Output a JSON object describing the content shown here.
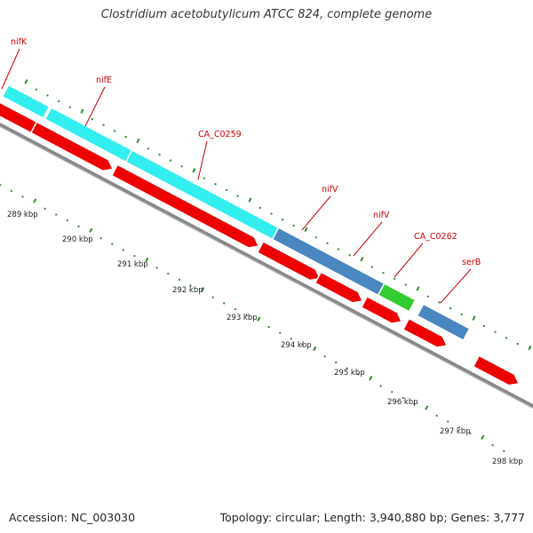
{
  "title": "Clostridium acetobutylicum ATCC 824, complete genome",
  "footer": {
    "accession": "Accession: NC_003030",
    "summary": "Topology: circular; Length: 3,940,880 bp; Genes: 3,777"
  },
  "colors": {
    "backbone": "#888888",
    "cds": "#ee0000",
    "cyan_gene": "#33eeee",
    "steelblue_gene": "#4a86c0",
    "green_gene": "#33cc33",
    "orange_gene": "#ff9900",
    "ticks": "#2e8b2e",
    "labels": "#cc0000"
  },
  "gene_labels": [
    "nifK",
    "nifE",
    "CA_C0259",
    "nifV",
    "nifV",
    "CA_C0262",
    "serB"
  ],
  "kbp_ticks": [
    "289 kbp",
    "290 kbp",
    "291 kbp",
    "292 kbp",
    "293 kbp",
    "294 kbp",
    "295 kbp",
    "296 kbp",
    "297 kbp",
    "298 kbp"
  ]
}
